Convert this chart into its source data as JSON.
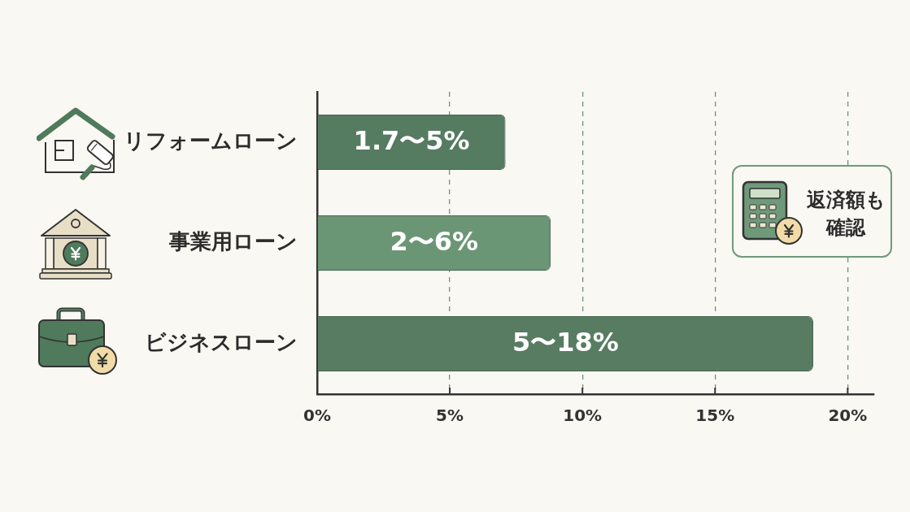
{
  "chart_data": {
    "type": "bar",
    "orientation": "horizontal",
    "categories": [
      "リフォームローン",
      "事業用ローン",
      "ビジネスローン"
    ],
    "values": [
      7.1,
      8.8,
      18.7
    ],
    "colors": [
      "#557b60",
      "#6b9675",
      "#587c61"
    ],
    "xlim": [
      0,
      21
    ],
    "xticks": [
      {
        "value": 0,
        "label": "0%"
      },
      {
        "value": 5,
        "label": "5%"
      },
      {
        "value": 10,
        "label": "10%"
      },
      {
        "value": 15,
        "label": "15%"
      },
      {
        "value": 20,
        "label": "20%"
      }
    ],
    "grid": "x",
    "annotations": [
      "返済額も確認",
      "1.7〜5%",
      "2〜6%",
      "5〜18%"
    ]
  }
}
